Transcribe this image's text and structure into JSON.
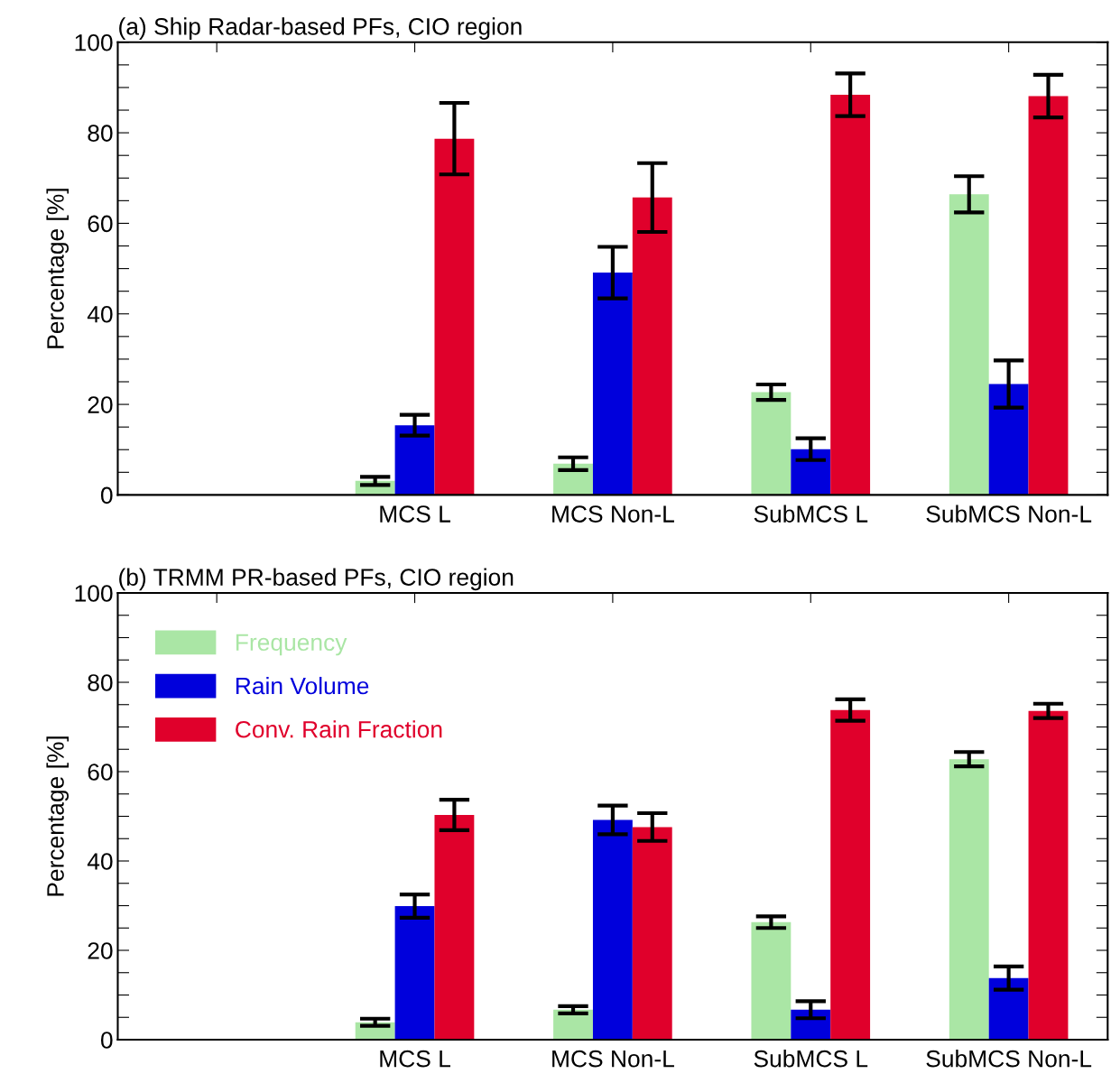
{
  "chart_data": [
    {
      "type": "bar",
      "title": "(a) Ship Radar-based PFs, CIO region",
      "ylabel": "Percentage [%]",
      "categories": [
        null,
        "MCS L",
        "MCS Non-L",
        "SubMCS L",
        "SubMCS Non-L"
      ],
      "ylim": [
        0,
        100
      ],
      "yticks": [
        0,
        {
          "value": 5,
          "label": null
        },
        {
          "value": 10,
          "label": null
        },
        {
          "value": 15,
          "label": null
        },
        20,
        {
          "value": 25,
          "label": null
        },
        {
          "value": 30,
          "label": null
        },
        {
          "value": 35,
          "label": null
        },
        40,
        {
          "value": 45,
          "label": null
        },
        {
          "value": 50,
          "label": null
        },
        {
          "value": 55,
          "label": null
        },
        60,
        {
          "value": 65,
          "label": null
        },
        {
          "value": 70,
          "label": null
        },
        {
          "value": 75,
          "label": null
        },
        80,
        {
          "value": 85,
          "label": null
        },
        {
          "value": 90,
          "label": null
        },
        {
          "value": 95,
          "label": null
        },
        100
      ],
      "grid": false,
      "legend": false,
      "series": [
        {
          "color": "#aae6a5",
          "values": [
            null,
            3.1,
            6.9,
            22.7,
            66.4
          ],
          "errors": [
            null,
            0.9,
            1.4,
            1.7,
            4
          ]
        },
        {
          "color": "#0000dc",
          "values": [
            null,
            15.4,
            49.1,
            10.1,
            24.5
          ],
          "errors": [
            null,
            2.3,
            5.7,
            2.4,
            5.2
          ]
        },
        {
          "color": "#e0002b",
          "values": [
            null,
            78.7,
            65.7,
            88.4,
            88.1
          ],
          "errors": [
            null,
            7.9,
            7.6,
            4.7,
            4.7
          ]
        }
      ]
    },
    {
      "type": "bar",
      "title": "(b) TRMM PR-based PFs, CIO region",
      "ylabel": "Percentage [%]",
      "categories": [
        null,
        "MCS L",
        "MCS Non-L",
        "SubMCS L",
        "SubMCS Non-L"
      ],
      "ylim": [
        0,
        100
      ],
      "yticks": [
        0,
        {
          "value": 5,
          "label": null
        },
        {
          "value": 10,
          "label": null
        },
        {
          "value": 15,
          "label": null
        },
        20,
        {
          "value": 25,
          "label": null
        },
        {
          "value": 30,
          "label": null
        },
        {
          "value": 35,
          "label": null
        },
        40,
        {
          "value": 45,
          "label": null
        },
        {
          "value": 50,
          "label": null
        },
        {
          "value": 55,
          "label": null
        },
        60,
        {
          "value": 65,
          "label": null
        },
        {
          "value": 70,
          "label": null
        },
        {
          "value": 75,
          "label": null
        },
        80,
        {
          "value": 85,
          "label": null
        },
        {
          "value": 90,
          "label": null
        },
        {
          "value": 95,
          "label": null
        },
        100
      ],
      "grid": false,
      "legend": "top left",
      "series": [
        {
          "name": "Frequency",
          "color": "#aae6a5",
          "values": [
            null,
            3.9,
            6.7,
            26.3,
            62.8
          ],
          "errors": [
            null,
            0.8,
            0.8,
            1.3,
            1.6
          ]
        },
        {
          "name": "Rain Volume",
          "color": "#0000dc",
          "values": [
            null,
            29.9,
            49.2,
            6.7,
            13.8
          ],
          "errors": [
            null,
            2.6,
            3.2,
            1.9,
            2.6
          ]
        },
        {
          "name": "Conv. Rain Fraction",
          "color": "#e0002b",
          "values": [
            null,
            50.3,
            47.6,
            73.8,
            73.6
          ],
          "errors": [
            null,
            3.4,
            3.1,
            2.4,
            1.6
          ]
        }
      ]
    }
  ]
}
